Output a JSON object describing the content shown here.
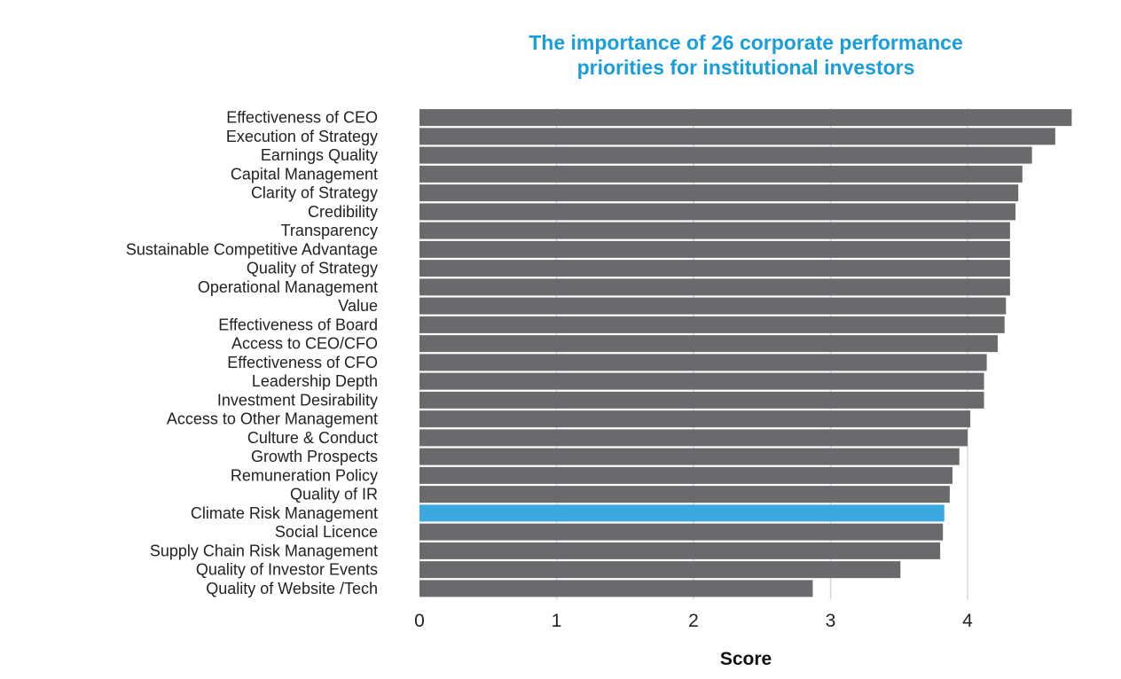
{
  "chart_data": {
    "type": "bar",
    "orientation": "horizontal",
    "title": [
      "The importance of 26 corporate performance",
      "priorities for institutional investors"
    ],
    "xlabel": "Score",
    "ylabel": "",
    "xlim": [
      0,
      4.8
    ],
    "xticks": [
      0,
      1,
      2,
      3,
      4
    ],
    "grid": "vertical",
    "categories": [
      "Effectiveness of CEO",
      "Execution of Strategy",
      "Earnings Quality",
      "Capital Management",
      "Clarity of Strategy",
      "Credibility",
      "Transparency",
      "Sustainable Competitive Advantage",
      "Quality of Strategy",
      "Operational Management",
      "Value",
      "Effectiveness of Board",
      "Access to CEO/CFO",
      "Effectiveness of CFO",
      "Leadership Depth",
      "Investment Desirability",
      "Access to Other Management",
      "Culture & Conduct",
      "Growth Prospects",
      "Remuneration Policy",
      "Quality of IR",
      "Climate Risk Management",
      "Social Licence",
      "Supply Chain Risk Management",
      "Quality of Investor Events",
      "Quality of Website /Tech"
    ],
    "values": [
      4.76,
      4.64,
      4.47,
      4.4,
      4.37,
      4.35,
      4.31,
      4.31,
      4.31,
      4.31,
      4.28,
      4.27,
      4.22,
      4.14,
      4.12,
      4.12,
      4.02,
      4.0,
      3.94,
      3.89,
      3.87,
      3.83,
      3.82,
      3.8,
      3.51,
      2.87
    ],
    "highlight": "Climate Risk Management",
    "colors": {
      "title": "#1a9ddb",
      "bar": "#6a6a6d",
      "highlight_bar": "#3aa9e0",
      "grid": "#c9d9e6"
    }
  }
}
